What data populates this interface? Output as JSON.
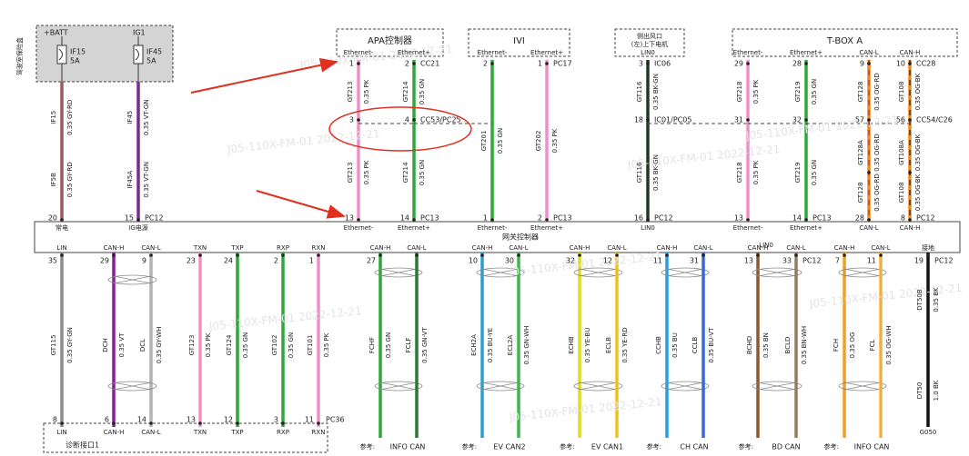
{
  "watermark": "J05-110X-FM-01 2022-12-21",
  "fuse_box": {
    "label": "驾驶室保险盒",
    "batt": "+BATT",
    "ig": "IG1",
    "fuses": [
      {
        "name": "IF15",
        "rating": "5A"
      },
      {
        "name": "IF45",
        "rating": "5A"
      }
    ]
  },
  "modules": [
    {
      "title": [
        "APA控制器"
      ],
      "pins": [
        "Ethernet-",
        "Ethernet+"
      ]
    },
    {
      "title": [
        "IVI"
      ],
      "pins": [
        "Ethernet-",
        "Ethernet+"
      ]
    },
    {
      "title": [
        "侧出风口",
        "(左)上下电机"
      ],
      "pins": [
        "LIN0"
      ]
    },
    {
      "title": [
        "T-BOX A"
      ],
      "pins": [
        "Ethernet-",
        "Ethernet+",
        "CAN-L",
        "CAN-H"
      ]
    }
  ],
  "top_wires": [
    {
      "pins": [
        "20"
      ],
      "connectors": [
        null
      ],
      "segments": [
        {
          "id": "IF15",
          "spec": "0.35 GY-RD"
        },
        {
          "id": "IF5B",
          "spec": "0.35 GY-RD"
        }
      ],
      "gateway_label": "常电",
      "color": "#9b5a60"
    },
    {
      "pins": [
        "15"
      ],
      "connectors": [
        "PC12"
      ],
      "segments": [
        {
          "id": "IF45",
          "spec": "0.35 VT-GN"
        },
        {
          "id": "IF45A",
          "spec": "0.35 VT-GN"
        }
      ],
      "gateway_label": "IG电源",
      "color": "#7a2c8c"
    },
    {
      "pins": [
        "1",
        "3",
        "13"
      ],
      "connectors": [
        null,
        null,
        null
      ],
      "segments": [
        {
          "id": "GT213",
          "spec": "0.35 PK"
        },
        {
          "id": "GT213",
          "spec": "0.35 PK"
        }
      ],
      "gateway_label": "Ethernet-",
      "color": "#ee90c8"
    },
    {
      "pins": [
        "2",
        "4",
        "14"
      ],
      "connectors": [
        "CC21",
        "CC53/PC25",
        "PC13"
      ],
      "segments": [
        {
          "id": "GT214",
          "spec": "0.35 GN"
        },
        {
          "id": "GT214",
          "spec": "0.35 GN"
        }
      ],
      "gateway_label": "Ethernet+",
      "color": "#2fa83a"
    },
    {
      "pins": [
        "2",
        "1"
      ],
      "connectors": [
        null,
        null
      ],
      "segments": [
        {
          "id": "GT201",
          "spec": "0.35 GN"
        }
      ],
      "gateway_label": "Ethernet-",
      "color": "#2fa83a"
    },
    {
      "pins": [
        "1",
        "2"
      ],
      "connectors": [
        "PC17",
        "PC13"
      ],
      "segments": [
        {
          "id": "GT202",
          "spec": "0.35 PK"
        }
      ],
      "gateway_label": "Ethernet+",
      "color": "#ee90c8"
    },
    {
      "pins": [
        "3",
        "18",
        "16"
      ],
      "connectors": [
        "IC06",
        "IC01/PC05",
        "PC12"
      ],
      "segments": [
        {
          "id": "GT116",
          "spec": "0.35 BK-GN"
        },
        {
          "id": "GT116",
          "spec": "0.35 BK-GN"
        }
      ],
      "gateway_label": "LIN0",
      "color": "#1f3a22"
    },
    {
      "pins": [
        "29",
        "31",
        "13"
      ],
      "connectors": [
        null,
        null,
        null
      ],
      "segments": [
        {
          "id": "GT218",
          "spec": "0.35 PK"
        },
        {
          "id": "GT218",
          "spec": "0.35 PK"
        }
      ],
      "gateway_label": "Ethernet-",
      "color": "#ee90c8"
    },
    {
      "pins": [
        "28",
        "32",
        "14"
      ],
      "connectors": [
        null,
        null,
        "PC13"
      ],
      "segments": [
        {
          "id": "GT219",
          "spec": "0.35 GN"
        },
        {
          "id": "GT219",
          "spec": "0.35 GN"
        }
      ],
      "gateway_label": "Ethernet+",
      "color": "#2fa83a"
    },
    {
      "pins": [
        "9",
        "57",
        "28"
      ],
      "connectors": [
        null,
        null,
        null
      ],
      "segments": [
        {
          "id": "GT128",
          "spec": "0.35 OG-RD"
        },
        {
          "id": "GT128A",
          "spec": "0.35 OG-RD"
        },
        {
          "id": "GT128",
          "spec": "0.35 OG-RD"
        }
      ],
      "gateway_label": "CAN-L",
      "color": "#f08a1c",
      "stripe": "#c0302a"
    },
    {
      "pins": [
        "10",
        "56",
        "8"
      ],
      "connectors": [
        "CC28",
        "CC54/C26",
        "PC12"
      ],
      "segments": [
        {
          "id": "GT108",
          "spec": "0.35 OG-BK"
        },
        {
          "id": "GT108A",
          "spec": "0.35 OG-BK"
        },
        {
          "id": "GT108",
          "spec": "0.35 OG-BK"
        }
      ],
      "gateway_label": "CAN-H",
      "color": "#f08a1c",
      "stripe": "#222222"
    }
  ],
  "gateway": "网关控制器",
  "bottom_wires": [
    {
      "gateway_label": "LIN",
      "pin": "35",
      "segments": [
        {
          "id": "GT115",
          "spec": "0.35 GY-GN"
        }
      ],
      "bottom_pin": "8",
      "bottom_label": "LIN",
      "color": "#8c8c8c"
    },
    {
      "gateway_label": "CAN-H",
      "pin": "29",
      "segments": [
        {
          "id": "DCH",
          "spec": "0.35 VT"
        }
      ],
      "bottom_pin": "6",
      "bottom_label": "CAN-H",
      "color": "#8b1d9b"
    },
    {
      "gateway_label": "CAN-L",
      "pin": "9",
      "segments": [
        {
          "id": "DCL",
          "spec": "0.35 GY-WH"
        }
      ],
      "bottom_pin": "14",
      "bottom_label": "CAN-L",
      "color": "#b4b4b4"
    },
    {
      "gateway_label": "TXN",
      "pin": "23",
      "segments": [
        {
          "id": "GT123",
          "spec": "0.35 PK"
        }
      ],
      "bottom_pin": "13",
      "bottom_label": "TXN",
      "color": "#ee90c8"
    },
    {
      "gateway_label": "TXP",
      "pin": "24",
      "segments": [
        {
          "id": "GT124",
          "spec": "0.35 GN"
        }
      ],
      "bottom_pin": "12",
      "bottom_label": "TXP",
      "color": "#2fa83a"
    },
    {
      "gateway_label": "RXP",
      "pin": "2",
      "segments": [
        {
          "id": "GT102",
          "spec": "0.35 GN"
        }
      ],
      "bottom_pin": "3",
      "bottom_label": "RXP",
      "color": "#2fa83a"
    },
    {
      "gateway_label": "RXN",
      "pin": "1",
      "segments": [
        {
          "id": "GT101",
          "spec": "0.35 PK"
        }
      ],
      "bottom_pin": "11",
      "bottom_label": "RXN",
      "conn_bottom": "PC36",
      "color": "#ee90c8"
    },
    {
      "gateway_label": "CAN-H",
      "pin": "27",
      "segments": [
        {
          "id": "FCHF",
          "spec": "0.35 GN"
        }
      ],
      "bus": "INFO CAN",
      "color": "#2fa83a"
    },
    {
      "gateway_label": "CAN-L",
      "segments": [
        {
          "id": "FCLF",
          "spec": "0.35 GN-VT"
        }
      ],
      "color": "#2a7a34"
    },
    {
      "gateway_label": "CAN-H",
      "pin": "10",
      "segments": [
        {
          "id": "ECH2A",
          "spec": "0.35 BU-YE"
        }
      ],
      "bus": "EV CAN2",
      "color": "#2aa0d0"
    },
    {
      "gateway_label": "CAN-L",
      "pin": "30",
      "segments": [
        {
          "id": "ECL2A",
          "spec": "0.35 GN-WH"
        }
      ],
      "color": "#3cb84a"
    },
    {
      "gateway_label": "CAN-H",
      "pin": "32",
      "segments": [
        {
          "id": "ECHB",
          "spec": "0.35 YE-BU"
        }
      ],
      "bus": "EV CAN1",
      "color": "#e0dc20"
    },
    {
      "gateway_label": "CAN-L",
      "pin": "12",
      "segments": [
        {
          "id": "ECLB",
          "spec": "0.35 YE-RD"
        }
      ],
      "color": "#f0c020"
    },
    {
      "gateway_label": "CAN-H",
      "pin": "11",
      "segments": [
        {
          "id": "CCHB",
          "spec": "0.35 BU"
        }
      ],
      "bus": "CH CAN",
      "color": "#2a9ee0"
    },
    {
      "gateway_label": "CAN-L",
      "pin": "31",
      "segments": [
        {
          "id": "CCLB",
          "spec": "0.35 BU-VT"
        }
      ],
      "color": "#3a6ad0"
    },
    {
      "gateway_label": "CAN-H",
      "pin": "13",
      "segments": [
        {
          "id": "BCHD",
          "spec": "0.35 BN"
        }
      ],
      "bus": "BD CAN",
      "color": "#8a5a30"
    },
    {
      "gateway_label": "CAN-L",
      "pin": "33",
      "conn_top": "PC12",
      "segments": [
        {
          "id": "BCLD",
          "spec": "0.35 BN-WH"
        }
      ],
      "color": "#9a7a5a"
    },
    {
      "gateway_label": "CAN-H",
      "pin": "7",
      "segments": [
        {
          "id": "FCH",
          "spec": "0.35 OG"
        }
      ],
      "bus": "INFO CAN",
      "color": "#f0a020"
    },
    {
      "gateway_label": "CAN-L",
      "pin": "11",
      "segments": [
        {
          "id": "FCL",
          "spec": "0.35 OG-WH"
        }
      ],
      "color": "#f0b040"
    },
    {
      "gateway_label": "接地",
      "pin": "19",
      "conn_top": "PC12",
      "segments": [
        {
          "id": "DT50B",
          "spec": "0.35 BK"
        },
        {
          "id": "DT50",
          "spec": "1.0 BK"
        }
      ],
      "bottom_label": "G050",
      "color": "#111111"
    }
  ],
  "bottom_overlay_label": "LIN0",
  "diag_label": "诊断接口1",
  "bus_prefix": "参考:"
}
